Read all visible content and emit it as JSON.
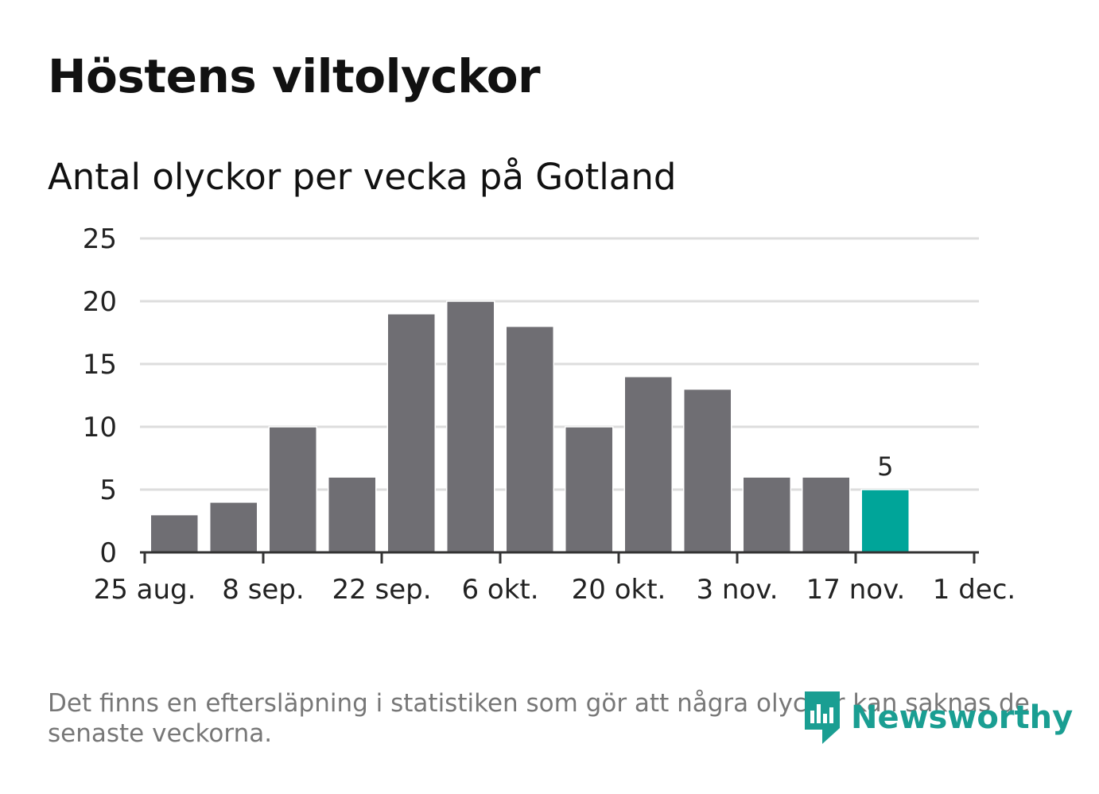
{
  "header": {
    "title": "Höstens viltolyckor",
    "subtitle": "Antal olyckor per vecka på Gotland"
  },
  "footer": {
    "note": "Det finns en eftersläpning i statistiken som gör att några olyckor kan saknas de senaste veckorna.",
    "brand": "Newsworthy"
  },
  "colors": {
    "bar": "#6f6e73",
    "highlight": "#00a599",
    "grid": "#dddddd",
    "axis": "#333333",
    "brand": "#1a9e92"
  },
  "chart_data": {
    "type": "bar",
    "title": "Antal olyckor per vecka på Gotland",
    "xlabel": "",
    "ylabel": "",
    "ylim": [
      0,
      25
    ],
    "yticks": [
      0,
      5,
      10,
      15,
      20,
      25
    ],
    "grid": true,
    "x_axis": {
      "start_day": 0,
      "end_day": 98,
      "tick_labels": [
        "25 aug.",
        "8 sep.",
        "22 sep.",
        "6 okt.",
        "20 okt.",
        "3 nov.",
        "17 nov.",
        "1 dec."
      ],
      "tick_days": [
        0,
        14,
        28,
        42,
        56,
        70,
        84,
        98
      ]
    },
    "series": [
      {
        "name": "Antal olyckor",
        "week_start_days": [
          3.5,
          10.5,
          17.5,
          24.5,
          31.5,
          38.5,
          45.5,
          52.5,
          59.5,
          66.5,
          73.5,
          80.5,
          87.5
        ],
        "values": [
          3,
          4,
          10,
          6,
          19,
          20,
          18,
          10,
          14,
          13,
          6,
          6,
          5
        ]
      }
    ],
    "highlight_index": 12,
    "annotation": {
      "index": 12,
      "label": "5"
    }
  }
}
